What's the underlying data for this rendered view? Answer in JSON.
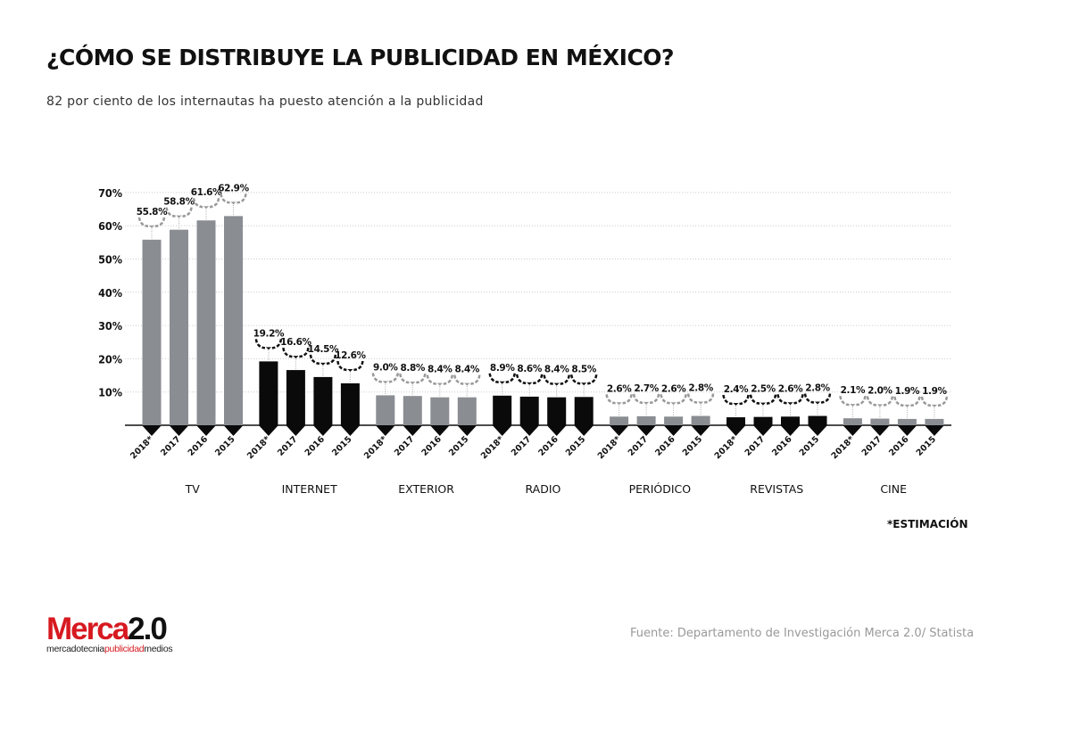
{
  "header": {
    "title": "¿CÓMO SE DISTRIBUYE LA PUBLICIDAD EN MÉXICO?",
    "subtitle": "82 por ciento de los internautas ha puesto atención a la publicidad"
  },
  "chart_data": {
    "type": "bar",
    "title": "¿CÓMO SE DISTRIBUYE LA PUBLICIDAD EN MÉXICO?",
    "xlabel": "",
    "ylabel": "",
    "ylim": [
      0,
      70
    ],
    "yticks": [
      "10%",
      "20%",
      "30%",
      "40%",
      "50%",
      "60%",
      "70%"
    ],
    "grid": true,
    "years": [
      "2018*",
      "2017",
      "2016",
      "2015"
    ],
    "colors": {
      "gray": "#8a8d91",
      "black": "#0a0a0a"
    },
    "groups": [
      {
        "category": "TV",
        "color": "gray",
        "values": [
          55.8,
          58.8,
          61.6,
          62.9
        ],
        "labels": [
          "55.8%",
          "58.8%",
          "61.6%",
          "62.9%"
        ]
      },
      {
        "category": "INTERNET",
        "color": "black",
        "values": [
          19.2,
          16.6,
          14.5,
          12.6
        ],
        "labels": [
          "19.2%",
          "16.6%",
          "14.5%",
          "12.6%"
        ]
      },
      {
        "category": "EXTERIOR",
        "color": "gray",
        "values": [
          9.0,
          8.8,
          8.4,
          8.4
        ],
        "labels": [
          "9.0%",
          "8.8%",
          "8.4%",
          "8.4%"
        ]
      },
      {
        "category": "RADIO",
        "color": "black",
        "values": [
          8.9,
          8.6,
          8.4,
          8.5
        ],
        "labels": [
          "8.9%",
          "8.6%",
          "8.4%",
          "8.5%"
        ]
      },
      {
        "category": "PERIÓDICO",
        "color": "gray",
        "values": [
          2.6,
          2.7,
          2.6,
          2.8
        ],
        "labels": [
          "2.6%",
          "2.7%",
          "2.6%",
          "2.8%"
        ]
      },
      {
        "category": "REVISTAS",
        "color": "black",
        "values": [
          2.4,
          2.5,
          2.6,
          2.8
        ],
        "labels": [
          "2.4%",
          "2.5%",
          "2.6%",
          "2.8%"
        ]
      },
      {
        "category": "CINE",
        "color": "gray",
        "values": [
          2.1,
          2.0,
          1.9,
          1.9
        ],
        "labels": [
          "2.1%",
          "2.0%",
          "1.9%",
          "1.9%"
        ]
      }
    ],
    "annotation": "*ESTIMACIÓN"
  },
  "footer": {
    "logo": {
      "main_red": "Merca",
      "main_black": "2.0",
      "sub_a": "mercadotecnia",
      "sub_b": "publicidad",
      "sub_c": "medios"
    },
    "source": "Fuente: Departamento de Investigación Merca 2.0/ Statista"
  }
}
